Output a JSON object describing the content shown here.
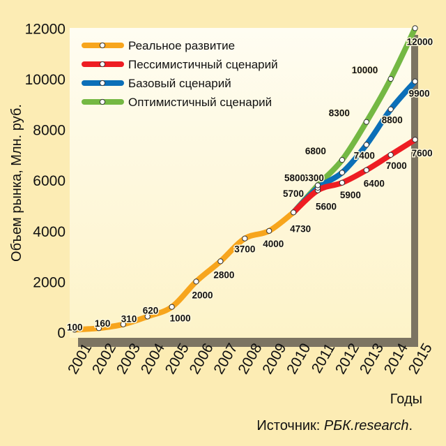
{
  "chart_data": {
    "type": "line",
    "ylabel": "Объем рынка, Млн. руб.",
    "xlabel": "Годы",
    "source_prefix": "Источник: ",
    "source_name": "РБК.research",
    "source_suffix": ".",
    "ylim": [
      0,
      12000
    ],
    "yticks": [
      0,
      2000,
      4000,
      6000,
      8000,
      10000,
      12000
    ],
    "categories": [
      "2001",
      "2002",
      "2003",
      "2004",
      "2005",
      "2006",
      "2007",
      "2008",
      "2009",
      "2010",
      "2011",
      "2012",
      "2013",
      "2014",
      "2015"
    ],
    "grid": false,
    "legend_position": "top-left",
    "series": [
      {
        "name": "Реальное развитие",
        "color": "#f7a51d",
        "x": [
          "2001",
          "2002",
          "2003",
          "2004",
          "2005",
          "2006",
          "2007",
          "2008",
          "2009",
          "2010"
        ],
        "values": [
          100,
          160,
          310,
          620,
          1000,
          2000,
          2800,
          3700,
          4000,
          4730
        ]
      },
      {
        "name": "Пессимистичный сценарий",
        "color": "#ee1d23",
        "x": [
          "2010",
          "2011",
          "2012",
          "2013",
          "2014",
          "2015"
        ],
        "values": [
          4730,
          5600,
          5900,
          6400,
          7000,
          7600
        ]
      },
      {
        "name": "Базовый сценарий",
        "color": "#0b6fb8",
        "x": [
          "2010",
          "2011",
          "2012",
          "2013",
          "2014",
          "2015"
        ],
        "values": [
          4730,
          5700,
          6300,
          7400,
          8800,
          9900
        ]
      },
      {
        "name": "Оптимистичный сценарий",
        "color": "#74b843",
        "x": [
          "2010",
          "2011",
          "2012",
          "2013",
          "2014",
          "2015"
        ],
        "values": [
          4730,
          5800,
          6800,
          8300,
          10000,
          12000
        ]
      }
    ]
  }
}
